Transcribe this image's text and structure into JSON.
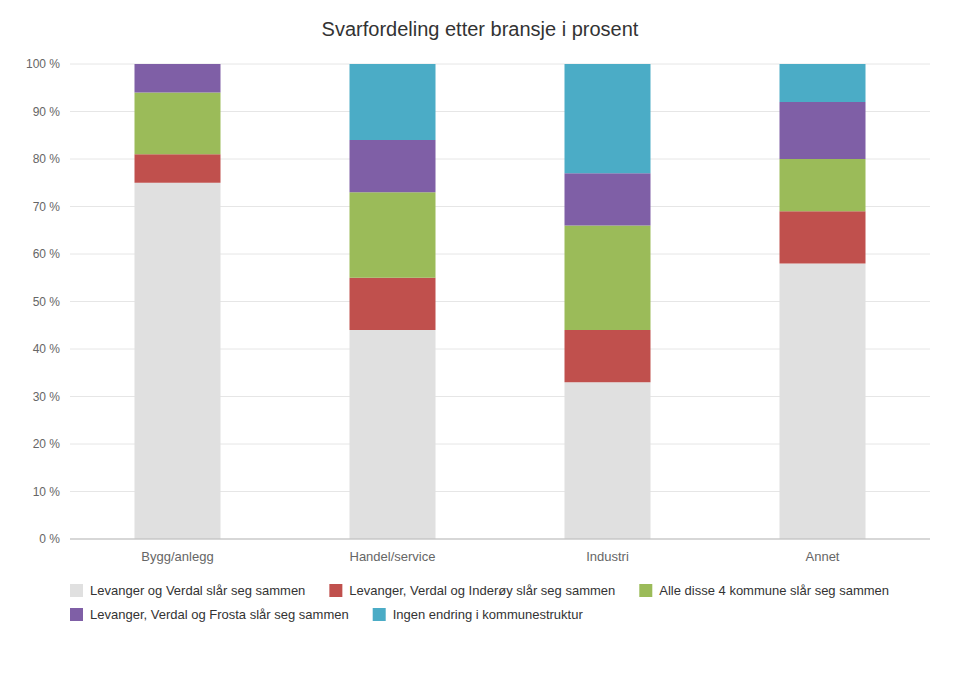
{
  "chart_data": {
    "type": "bar",
    "stacked": true,
    "title": "Svarfordeling etter bransje i prosent",
    "categories": [
      "Bygg/anlegg",
      "Handel/service",
      "Industri",
      "Annet"
    ],
    "series": [
      {
        "name": "Levanger og Verdal slår seg sammen",
        "color": "#e0e0e0",
        "values": [
          75,
          44,
          33,
          58
        ]
      },
      {
        "name": "Levanger, Verdal og Inderøy slår seg sammen",
        "color": "#c0504d",
        "values": [
          6,
          11,
          11,
          11
        ]
      },
      {
        "name": "Alle disse 4 kommune slår seg sammen",
        "color": "#9bbb59",
        "values": [
          13,
          18,
          22,
          11
        ]
      },
      {
        "name": "Levanger, Verdal og Frosta slår seg sammen",
        "color": "#7f5fa6",
        "values": [
          6,
          11,
          11,
          12
        ]
      },
      {
        "name": "Ingen endring i kommunestruktur",
        "color": "#4bacc6",
        "values": [
          0,
          16,
          23,
          8
        ]
      }
    ],
    "ylim": [
      0,
      100
    ],
    "yticks": [
      {
        "value": 0,
        "label": "0 %"
      },
      {
        "value": 10,
        "label": "10 %"
      },
      {
        "value": 20,
        "label": "20 %"
      },
      {
        "value": 30,
        "label": "30 %"
      },
      {
        "value": 40,
        "label": "40 %"
      },
      {
        "value": 50,
        "label": "50 %"
      },
      {
        "value": 60,
        "label": "60 %"
      },
      {
        "value": 70,
        "label": "70 %"
      },
      {
        "value": 80,
        "label": "80 %"
      },
      {
        "value": 90,
        "label": "90 %"
      },
      {
        "value": 100,
        "label": "100 %"
      }
    ],
    "grid": true,
    "legend": "bottom"
  }
}
